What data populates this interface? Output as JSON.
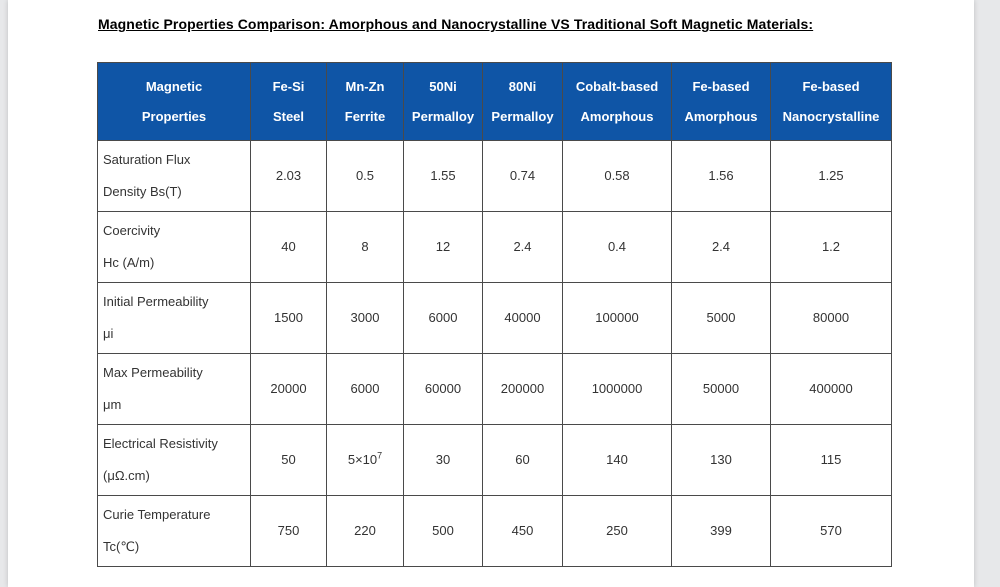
{
  "page": {
    "title": "Magnetic Properties Comparison: Amorphous and Nanocrystalline VS Traditional Soft Magnetic Materials:"
  },
  "colors": {
    "header_bg": "#0f55a6",
    "header_text": "#ffffff",
    "body_text": "#333333",
    "border": "#4a4a4a",
    "page_bg": "#ffffff",
    "canvas_bg": "#e7e8ea"
  },
  "table": {
    "header": [
      [
        "Magnetic",
        "Properties"
      ],
      [
        "Fe-Si",
        "Steel"
      ],
      [
        "Mn-Zn",
        "Ferrite"
      ],
      [
        "50Ni",
        "Permalloy"
      ],
      [
        "80Ni",
        "Permalloy"
      ],
      [
        "Cobalt-based",
        "Amorphous"
      ],
      [
        "Fe-based",
        "Amorphous"
      ],
      [
        "Fe-based",
        "Nanocrystalline"
      ]
    ],
    "rows": [
      {
        "label": [
          "Saturation Flux",
          "Density Bs(T)"
        ],
        "values": [
          "2.03",
          "0.5",
          "1.55",
          "0.74",
          "0.58",
          "1.56",
          "1.25"
        ]
      },
      {
        "label": [
          "Coercivity",
          "Hc (A/m)"
        ],
        "values": [
          "40",
          "8",
          "12",
          "2.4",
          "0.4",
          "2.4",
          "1.2"
        ]
      },
      {
        "label": [
          "Initial Permeability",
          "μi"
        ],
        "values": [
          "1500",
          "3000",
          "6000",
          "40000",
          "100000",
          "5000",
          "80000"
        ]
      },
      {
        "label": [
          "Max Permeability",
          "μm"
        ],
        "values": [
          "20000",
          "6000",
          "60000",
          "200000",
          "1000000",
          "50000",
          "400000"
        ]
      },
      {
        "label": [
          "Electrical Resistivity",
          "(μΩ.cm)"
        ],
        "values": [
          "50",
          {
            "text": "5×10",
            "sup": "7"
          },
          "30",
          "60",
          "140",
          "130",
          "115"
        ]
      },
      {
        "label": [
          "Curie Temperature",
          "Tc(℃)"
        ],
        "values": [
          "750",
          "220",
          "500",
          "450",
          "250",
          "399",
          "570"
        ]
      }
    ]
  }
}
